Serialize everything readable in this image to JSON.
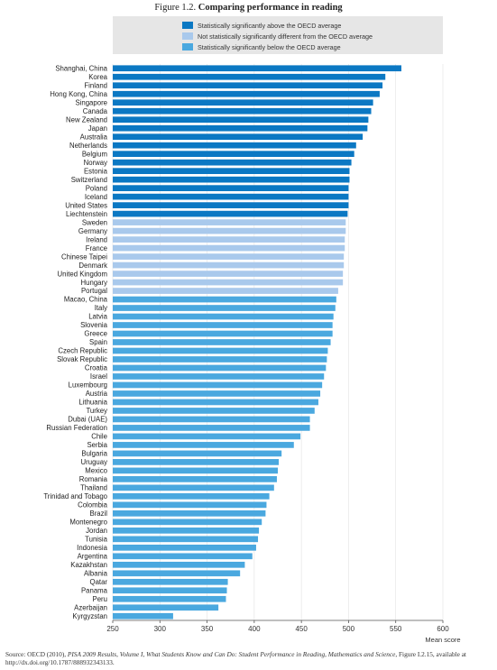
{
  "title": {
    "figure_label": "Figure 1.2.",
    "text": "Comparing performance in reading"
  },
  "colors": {
    "above": "#0b78c3",
    "not_different": "#a9c9ec",
    "below": "#4aa8df",
    "legend_bg": "#e6e6e6",
    "axis": "#555555"
  },
  "chart_data": {
    "type": "bar",
    "orientation": "horizontal",
    "title": "Comparing performance in reading",
    "xlabel": "Mean score",
    "ylabel": "",
    "xlim": [
      250,
      600
    ],
    "xticks": [
      250,
      300,
      350,
      400,
      450,
      500,
      550,
      600
    ],
    "legend_position": "top",
    "legend": [
      {
        "key": "above",
        "label": "Statistically significantly above the OECD average"
      },
      {
        "key": "not_different",
        "label": "Not statistically significantly different from the OECD average"
      },
      {
        "key": "below",
        "label": "Statistically significantly below the OECD average"
      }
    ],
    "categories": [
      "Shanghai, China",
      "Korea",
      "Finland",
      "Hong Kong, China",
      "Singapore",
      "Canada",
      "New Zealand",
      "Japan",
      "Australia",
      "Netherlands",
      "Belgium",
      "Norway",
      "Estonia",
      "Switzerland",
      "Poland",
      "Iceland",
      "United States",
      "Liechtenstein",
      "Sweden",
      "Germany",
      "Ireland",
      "France",
      "Chinese Taipei",
      "Denmark",
      "United Kingdom",
      "Hungary",
      "Portugal",
      "Macao, China",
      "Italy",
      "Latvia",
      "Slovenia",
      "Greece",
      "Spain",
      "Czech Republic",
      "Slovak Republic",
      "Croatia",
      "Israel",
      "Luxembourg",
      "Austria",
      "Lithuania",
      "Turkey",
      "Dubai (UAE)",
      "Russian Federation",
      "Chile",
      "Serbia",
      "Bulgaria",
      "Uruguay",
      "Mexico",
      "Romania",
      "Thailand",
      "Trinidad and Tobago",
      "Colombia",
      "Brazil",
      "Montenegro",
      "Jordan",
      "Tunisia",
      "Indonesia",
      "Argentina",
      "Kazakhstan",
      "Albania",
      "Qatar",
      "Panama",
      "Peru",
      "Azerbaijan",
      "Kyrgyzstan"
    ],
    "values": [
      556,
      539,
      536,
      533,
      526,
      524,
      521,
      520,
      515,
      508,
      506,
      503,
      501,
      501,
      500,
      500,
      500,
      499,
      497,
      497,
      496,
      496,
      495,
      495,
      494,
      494,
      489,
      487,
      486,
      484,
      483,
      483,
      481,
      478,
      477,
      476,
      474,
      472,
      470,
      468,
      464,
      459,
      459,
      449,
      442,
      429,
      426,
      425,
      424,
      421,
      416,
      413,
      412,
      408,
      405,
      404,
      402,
      398,
      390,
      385,
      372,
      371,
      370,
      362,
      314
    ],
    "groups": [
      "above",
      "above",
      "above",
      "above",
      "above",
      "above",
      "above",
      "above",
      "above",
      "above",
      "above",
      "above",
      "above",
      "above",
      "above",
      "above",
      "above",
      "above",
      "not_different",
      "not_different",
      "not_different",
      "not_different",
      "not_different",
      "not_different",
      "not_different",
      "not_different",
      "not_different",
      "below",
      "below",
      "below",
      "below",
      "below",
      "below",
      "below",
      "below",
      "below",
      "below",
      "below",
      "below",
      "below",
      "below",
      "below",
      "below",
      "below",
      "below",
      "below",
      "below",
      "below",
      "below",
      "below",
      "below",
      "below",
      "below",
      "below",
      "below",
      "below",
      "below",
      "below",
      "below",
      "below",
      "below",
      "below",
      "below",
      "below",
      "below"
    ]
  },
  "source": {
    "prefix": "Source:  OECD (2010), ",
    "italic": "PISA 2009 Results, Volume I, What Students Know and Can Do: Student Performance in Reading, Mathematics and Science",
    "suffix": ", Figure I.2.15, available at",
    "line2": "http://dx.doi.org/10.1787/888932343133."
  }
}
